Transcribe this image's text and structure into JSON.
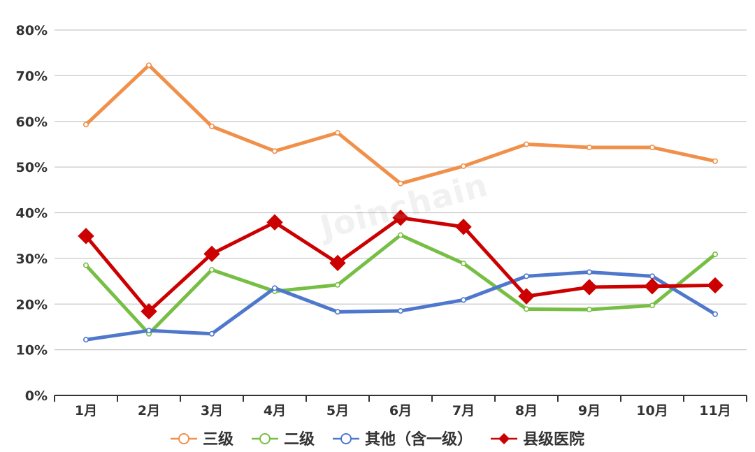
{
  "chart_data": {
    "type": "line",
    "categories": [
      "1月",
      "2月",
      "3月",
      "4月",
      "5月",
      "6月",
      "7月",
      "8月",
      "9月",
      "10月",
      "11月"
    ],
    "ylim": [
      0,
      80
    ],
    "yticks": [
      0,
      10,
      20,
      30,
      40,
      50,
      60,
      70,
      80
    ],
    "ytick_labels": [
      "0%",
      "10%",
      "20%",
      "30%",
      "40%",
      "50%",
      "60%",
      "70%",
      "80%"
    ],
    "grid": true,
    "legend_position": "bottom",
    "watermark": "Joinchain",
    "series": [
      {
        "name": "三级",
        "color": "#f0904a",
        "marker": "circle",
        "values": [
          59.3,
          72.3,
          58.9,
          53.5,
          57.5,
          46.4,
          50.2,
          55.0,
          54.3,
          54.3,
          51.3
        ]
      },
      {
        "name": "二级",
        "color": "#77bf44",
        "marker": "circle",
        "values": [
          28.5,
          13.5,
          27.5,
          22.8,
          24.2,
          35.1,
          28.9,
          18.9,
          18.8,
          19.7,
          30.9
        ]
      },
      {
        "name": "其他（含一级）",
        "color": "#4f78cc",
        "marker": "circle",
        "values": [
          12.2,
          14.2,
          13.5,
          23.5,
          18.3,
          18.5,
          20.9,
          26.1,
          27.0,
          26.1,
          17.8
        ]
      },
      {
        "name": "县级医院",
        "color": "#cc0000",
        "marker": "diamond",
        "values": [
          34.9,
          18.4,
          31.0,
          37.9,
          29.0,
          38.9,
          36.9,
          21.7,
          23.7,
          23.9,
          24.1
        ]
      }
    ]
  }
}
